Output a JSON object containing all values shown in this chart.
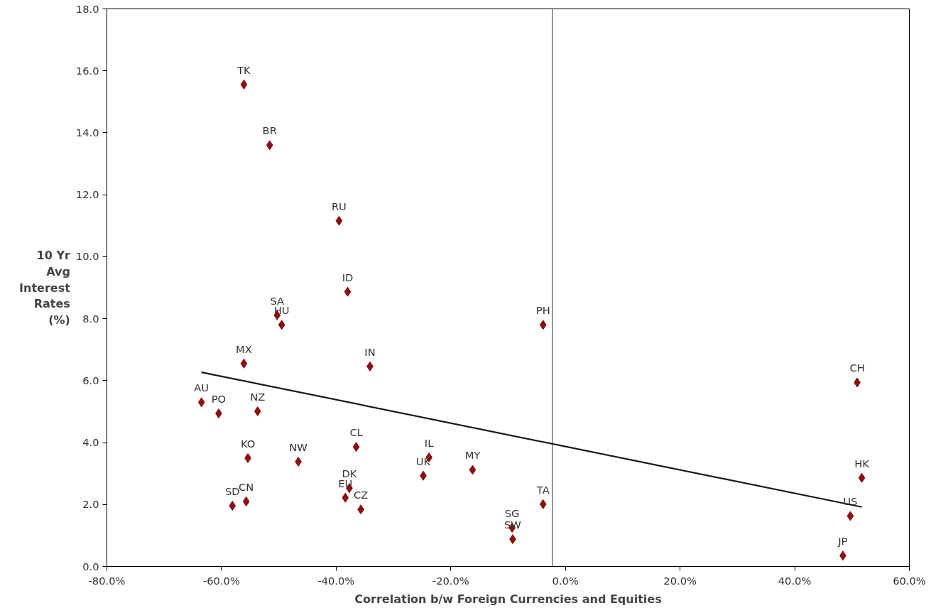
{
  "chart_data": {
    "type": "scatter",
    "xlabel": "Correlation b/w Foreign Currencies and Equities",
    "ylabel": "10 Yr\nAvg\nInterest\nRates\n(%)",
    "marker": "diamond",
    "grid": false,
    "xlim": [
      -80,
      60
    ],
    "ylim": [
      0,
      18
    ],
    "xticks": [
      {
        "value": -80,
        "label": "-80.0%"
      },
      {
        "value": -60,
        "label": "-60.0%"
      },
      {
        "value": -40,
        "label": "-40.0%"
      },
      {
        "value": -20,
        "label": "-20.0%"
      },
      {
        "value": 0,
        "label": "0.0%"
      },
      {
        "value": 20,
        "label": "20.0%"
      },
      {
        "value": 40,
        "label": "40.0%"
      },
      {
        "value": 60,
        "label": "60.0%"
      }
    ],
    "yticks": [
      {
        "value": 0,
        "label": "0.0"
      },
      {
        "value": 2,
        "label": "2.0"
      },
      {
        "value": 4,
        "label": "4.0"
      },
      {
        "value": 6,
        "label": "6.0"
      },
      {
        "value": 8,
        "label": "8.0"
      },
      {
        "value": 10,
        "label": "10.0"
      },
      {
        "value": 12,
        "label": "12.0"
      },
      {
        "value": 14,
        "label": "14.0"
      },
      {
        "value": 16,
        "label": "16.0"
      },
      {
        "value": 18,
        "label": "18.0"
      }
    ],
    "series": [
      {
        "color": "#8b1010",
        "x": [
          -56.1,
          -51.6,
          -39.5,
          -38.0,
          -50.3,
          -49.5,
          -56.1,
          -34.1,
          -63.5,
          -60.5,
          -53.7,
          -55.4,
          -46.6,
          -36.5,
          -23.8,
          -24.8,
          -16.2,
          -37.7,
          -38.4,
          -35.7,
          -58.1,
          -55.7,
          -9.3,
          -9.2,
          -3.9,
          -3.9,
          50.9,
          51.7,
          49.7,
          48.4
        ],
        "values": [
          15.56,
          13.6,
          11.16,
          8.87,
          8.11,
          7.8,
          6.55,
          6.46,
          5.3,
          4.94,
          5.01,
          3.5,
          3.38,
          3.86,
          3.52,
          2.93,
          3.12,
          2.53,
          2.22,
          1.84,
          1.96,
          2.1,
          1.25,
          0.88,
          2.01,
          7.8,
          5.94,
          2.86,
          1.63,
          0.35
        ]
      },
      {
        "type": "line",
        "marker": "none",
        "color": "#1a1a1a",
        "x": [
          -63.5,
          51.7
        ],
        "values": [
          6.27,
          1.92
        ]
      }
    ],
    "ref_lines": [
      {
        "axis": "x",
        "value": -2.3,
        "color": "#333333"
      }
    ],
    "annotations": [
      {
        "text": "TK",
        "x": -56.1,
        "y": 15.56
      },
      {
        "text": "BR",
        "x": -51.6,
        "y": 13.6
      },
      {
        "text": "RU",
        "x": -39.5,
        "y": 11.16
      },
      {
        "text": "ID",
        "x": -38.0,
        "y": 8.87
      },
      {
        "text": "SA",
        "x": -50.3,
        "y": 8.11
      },
      {
        "text": "HU",
        "x": -49.5,
        "y": 7.8
      },
      {
        "text": "MX",
        "x": -56.1,
        "y": 6.55
      },
      {
        "text": "IN",
        "x": -34.1,
        "y": 6.46
      },
      {
        "text": "AU",
        "x": -63.5,
        "y": 5.3
      },
      {
        "text": "PO",
        "x": -60.5,
        "y": 4.94
      },
      {
        "text": "NZ",
        "x": -53.7,
        "y": 5.01
      },
      {
        "text": "KO",
        "x": -55.4,
        "y": 3.5
      },
      {
        "text": "NW",
        "x": -46.6,
        "y": 3.38
      },
      {
        "text": "CL",
        "x": -36.5,
        "y": 3.86
      },
      {
        "text": "IL",
        "x": -23.8,
        "y": 3.52
      },
      {
        "text": "UK",
        "x": -24.8,
        "y": 2.93
      },
      {
        "text": "MY",
        "x": -16.2,
        "y": 3.12
      },
      {
        "text": "DK",
        "x": -37.7,
        "y": 2.53
      },
      {
        "text": "EU",
        "x": -38.4,
        "y": 2.22
      },
      {
        "text": "CZ",
        "x": -35.7,
        "y": 1.84
      },
      {
        "text": "SD",
        "x": -58.1,
        "y": 1.96
      },
      {
        "text": "CN",
        "x": -55.7,
        "y": 2.1
      },
      {
        "text": "SG",
        "x": -9.3,
        "y": 1.25
      },
      {
        "text": "SW",
        "x": -9.2,
        "y": 0.88
      },
      {
        "text": "TA",
        "x": -3.9,
        "y": 2.01
      },
      {
        "text": "PH",
        "x": -3.9,
        "y": 7.8
      },
      {
        "text": "CH",
        "x": 50.9,
        "y": 5.94
      },
      {
        "text": "HK",
        "x": 51.7,
        "y": 2.86
      },
      {
        "text": "US",
        "x": 49.7,
        "y": 1.63
      },
      {
        "text": "JP",
        "x": 48.4,
        "y": 0.35
      }
    ]
  }
}
